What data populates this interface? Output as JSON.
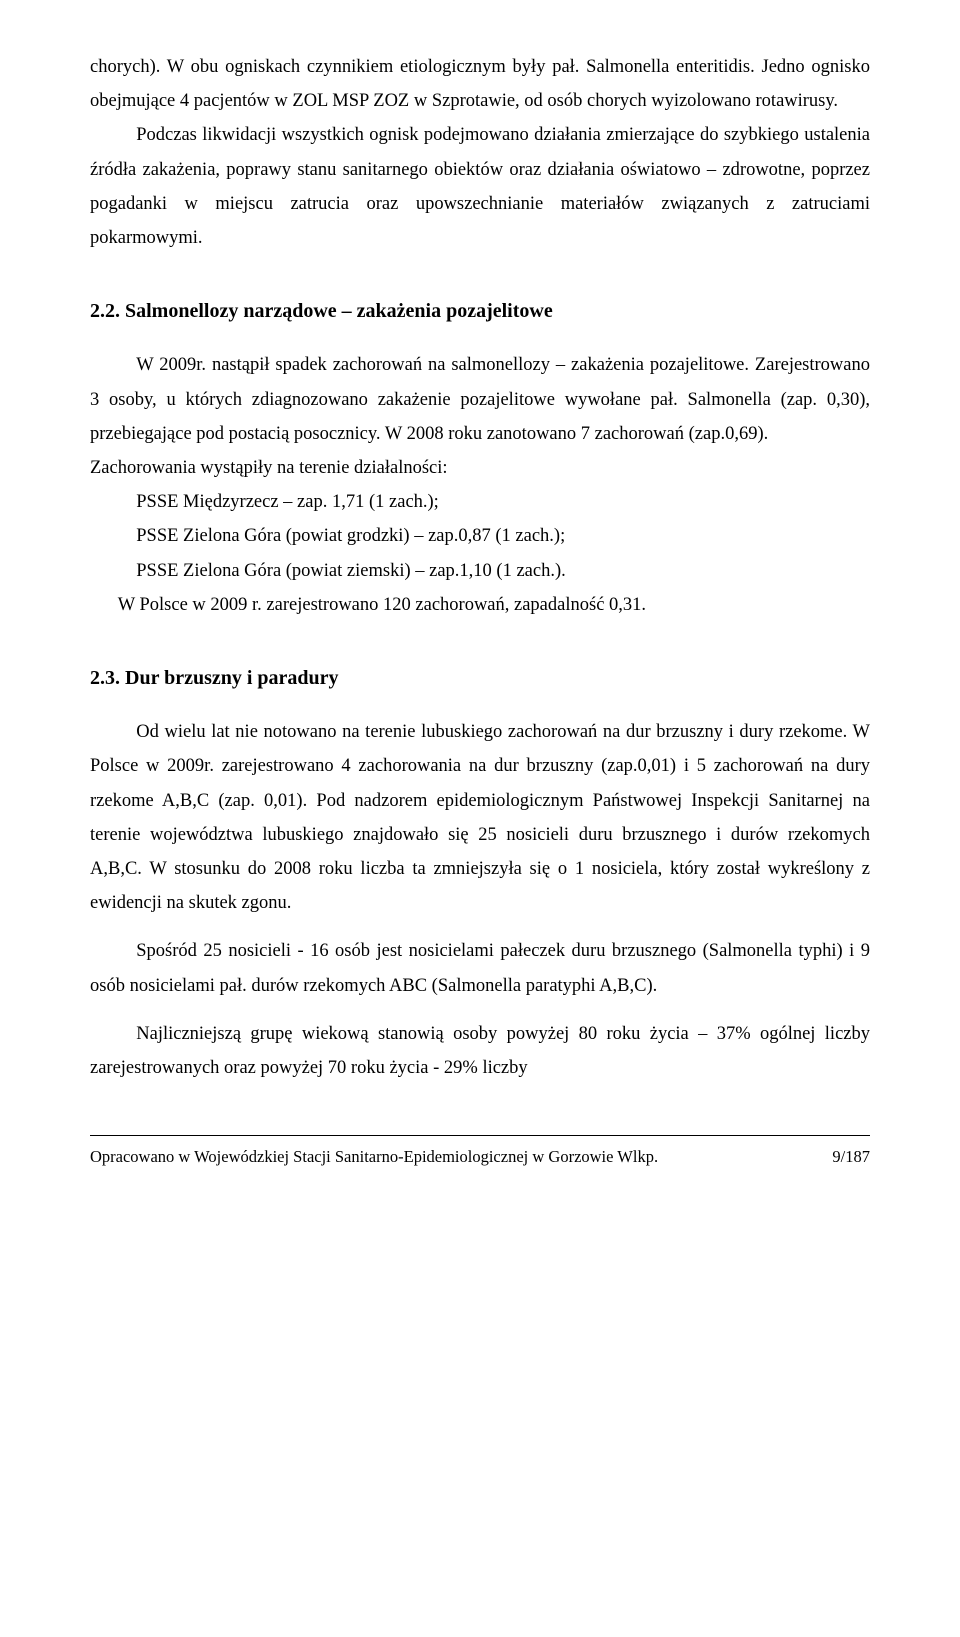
{
  "p1": "chorych). W obu ogniskach czynnikiem etiologicznym były pał. Salmonella enteritidis. Jedno ognisko obejmujące 4 pacjentów w ZOL MSP ZOZ w Szprotawie, od osób chorych wyizolowano rotawirusy.",
  "p2": "Podczas likwidacji wszystkich ognisk podejmowano działania zmierzające do szybkiego ustalenia źródła zakażenia, poprawy stanu sanitarnego obiektów oraz działania oświatowo – zdrowotne, poprzez pogadanki w miejscu zatrucia oraz upowszechnianie materiałów związanych z zatruciami pokarmowymi.",
  "sec22_title": "2.2. Salmonellozy narządowe – zakażenia pozajelitowe",
  "p3": "W 2009r. nastąpił spadek zachorowań na salmonellozy – zakażenia pozajelitowe. Zarejestrowano 3 osoby, u których zdiagnozowano zakażenie pozajelitowe wywołane pał. Salmonella (zap. 0,30), przebiegające pod postacią posocznicy. W 2008 roku zanotowano 7 zachorowań (zap.0,69).",
  "p4": "Zachorowania wystąpiły na terenie działalności:",
  "li1": "PSSE Międzyrzecz – zap. 1,71 (1 zach.);",
  "li2": "PSSE Zielona Góra (powiat grodzki) – zap.0,87 (1 zach.);",
  "li3": "PSSE Zielona Góra (powiat ziemski) – zap.1,10 (1 zach.).",
  "p5": "W Polsce w 2009 r. zarejestrowano 120 zachorowań, zapadalność 0,31.",
  "sec23_title": "2.3. Dur brzuszny i paradury",
  "p6": "Od wielu lat nie notowano na terenie lubuskiego zachorowań na dur brzuszny i dury rzekome. W Polsce w 2009r. zarejestrowano 4 zachorowania na dur brzuszny (zap.0,01) i 5 zachorowań na dury rzekome A,B,C (zap. 0,01). Pod nadzorem epidemiologicznym Państwowej Inspekcji Sanitarnej na terenie województwa lubuskiego znajdowało się 25 nosicieli duru brzusznego i durów rzekomych A,B,C. W stosunku do 2008 roku liczba ta zmniejszyła się o 1 nosiciela, który został wykreślony z ewidencji na skutek zgonu.",
  "p7": "Spośród 25 nosicieli - 16 osób jest nosicielami pałeczek duru brzusznego (Salmonella typhi)  i 9 osób  nosicielami pał. durów rzekomych ABC (Salmonella paratyphi A,B,C).",
  "p8": "Najliczniejszą grupę wiekową stanowią osoby powyżej 80 roku życia – 37% ogólnej liczby zarejestrowanych oraz powyżej 70 roku życia - 29% liczby",
  "footer_left": "Opracowano w Wojewódzkiej Stacji Sanitarno-Epidemiologicznej w Gorzowie Wlkp.",
  "footer_right": "9/187"
}
